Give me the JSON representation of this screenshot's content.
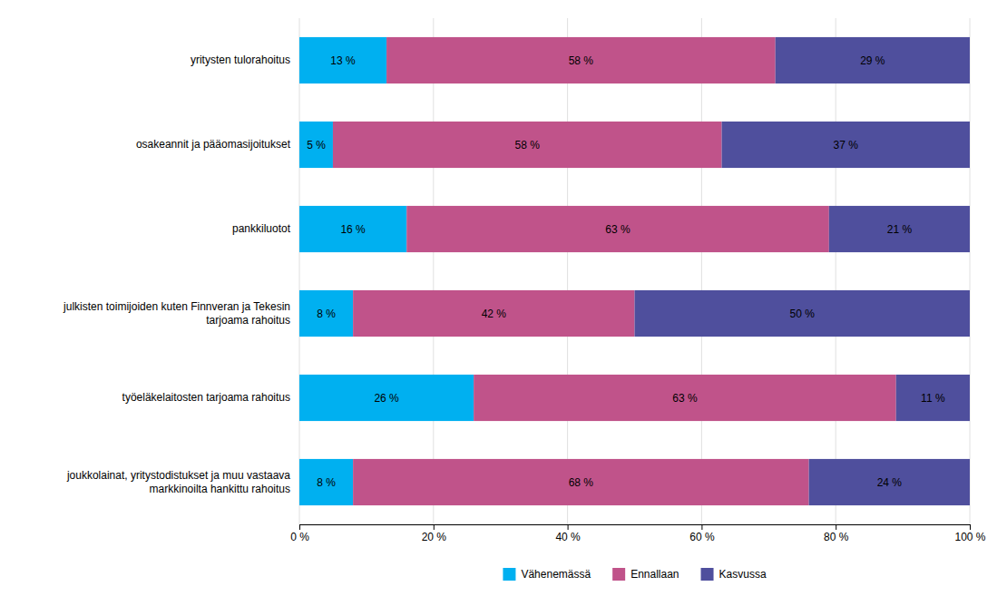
{
  "chart_data": {
    "type": "bar",
    "orientation": "horizontal",
    "stacked": true,
    "categories": [
      "yritysten tulorahoitus",
      "osakeannit ja pääomasijoitukset",
      "pankkiluotot",
      "julkisten toimijoiden kuten Finnveran ja Tekesin\n tarjoama rahoitus",
      "työeläkelaitosten tarjoama rahoitus",
      "joukkolainat, yritystodistukset ja muu vastaava\n markkinoilta hankittu rahoitus"
    ],
    "series": [
      {
        "name": "Vähenemässä",
        "color": "#00B0F0",
        "values": [
          13,
          5,
          16,
          8,
          26,
          8
        ],
        "value_labels": [
          "13 %",
          "5 %",
          "16 %",
          "8 %",
          "26 %",
          "8 %"
        ]
      },
      {
        "name": "Ennallaan",
        "color": "#C0538A",
        "values": [
          58,
          58,
          63,
          42,
          63,
          68
        ],
        "value_labels": [
          "58 %",
          "58 %",
          "63 %",
          "42 %",
          "63 %",
          "68 %"
        ]
      },
      {
        "name": "Kasvussa",
        "color": "#4F4F9D",
        "values": [
          29,
          37,
          21,
          50,
          11,
          24
        ],
        "value_labels": [
          "29 %",
          "37 %",
          "21 %",
          "50 %",
          "11 %",
          "24 %"
        ]
      }
    ],
    "xlim": [
      0,
      100
    ],
    "xticks": [
      {
        "value": 0,
        "label": "0 %"
      },
      {
        "value": 20,
        "label": "20 %"
      },
      {
        "value": 40,
        "label": "40 %"
      },
      {
        "value": 60,
        "label": "60 %"
      },
      {
        "value": 80,
        "label": "80 %"
      },
      {
        "value": 100,
        "label": "100 %"
      }
    ],
    "grid": true,
    "data_labels": true,
    "legend": "bottom"
  }
}
